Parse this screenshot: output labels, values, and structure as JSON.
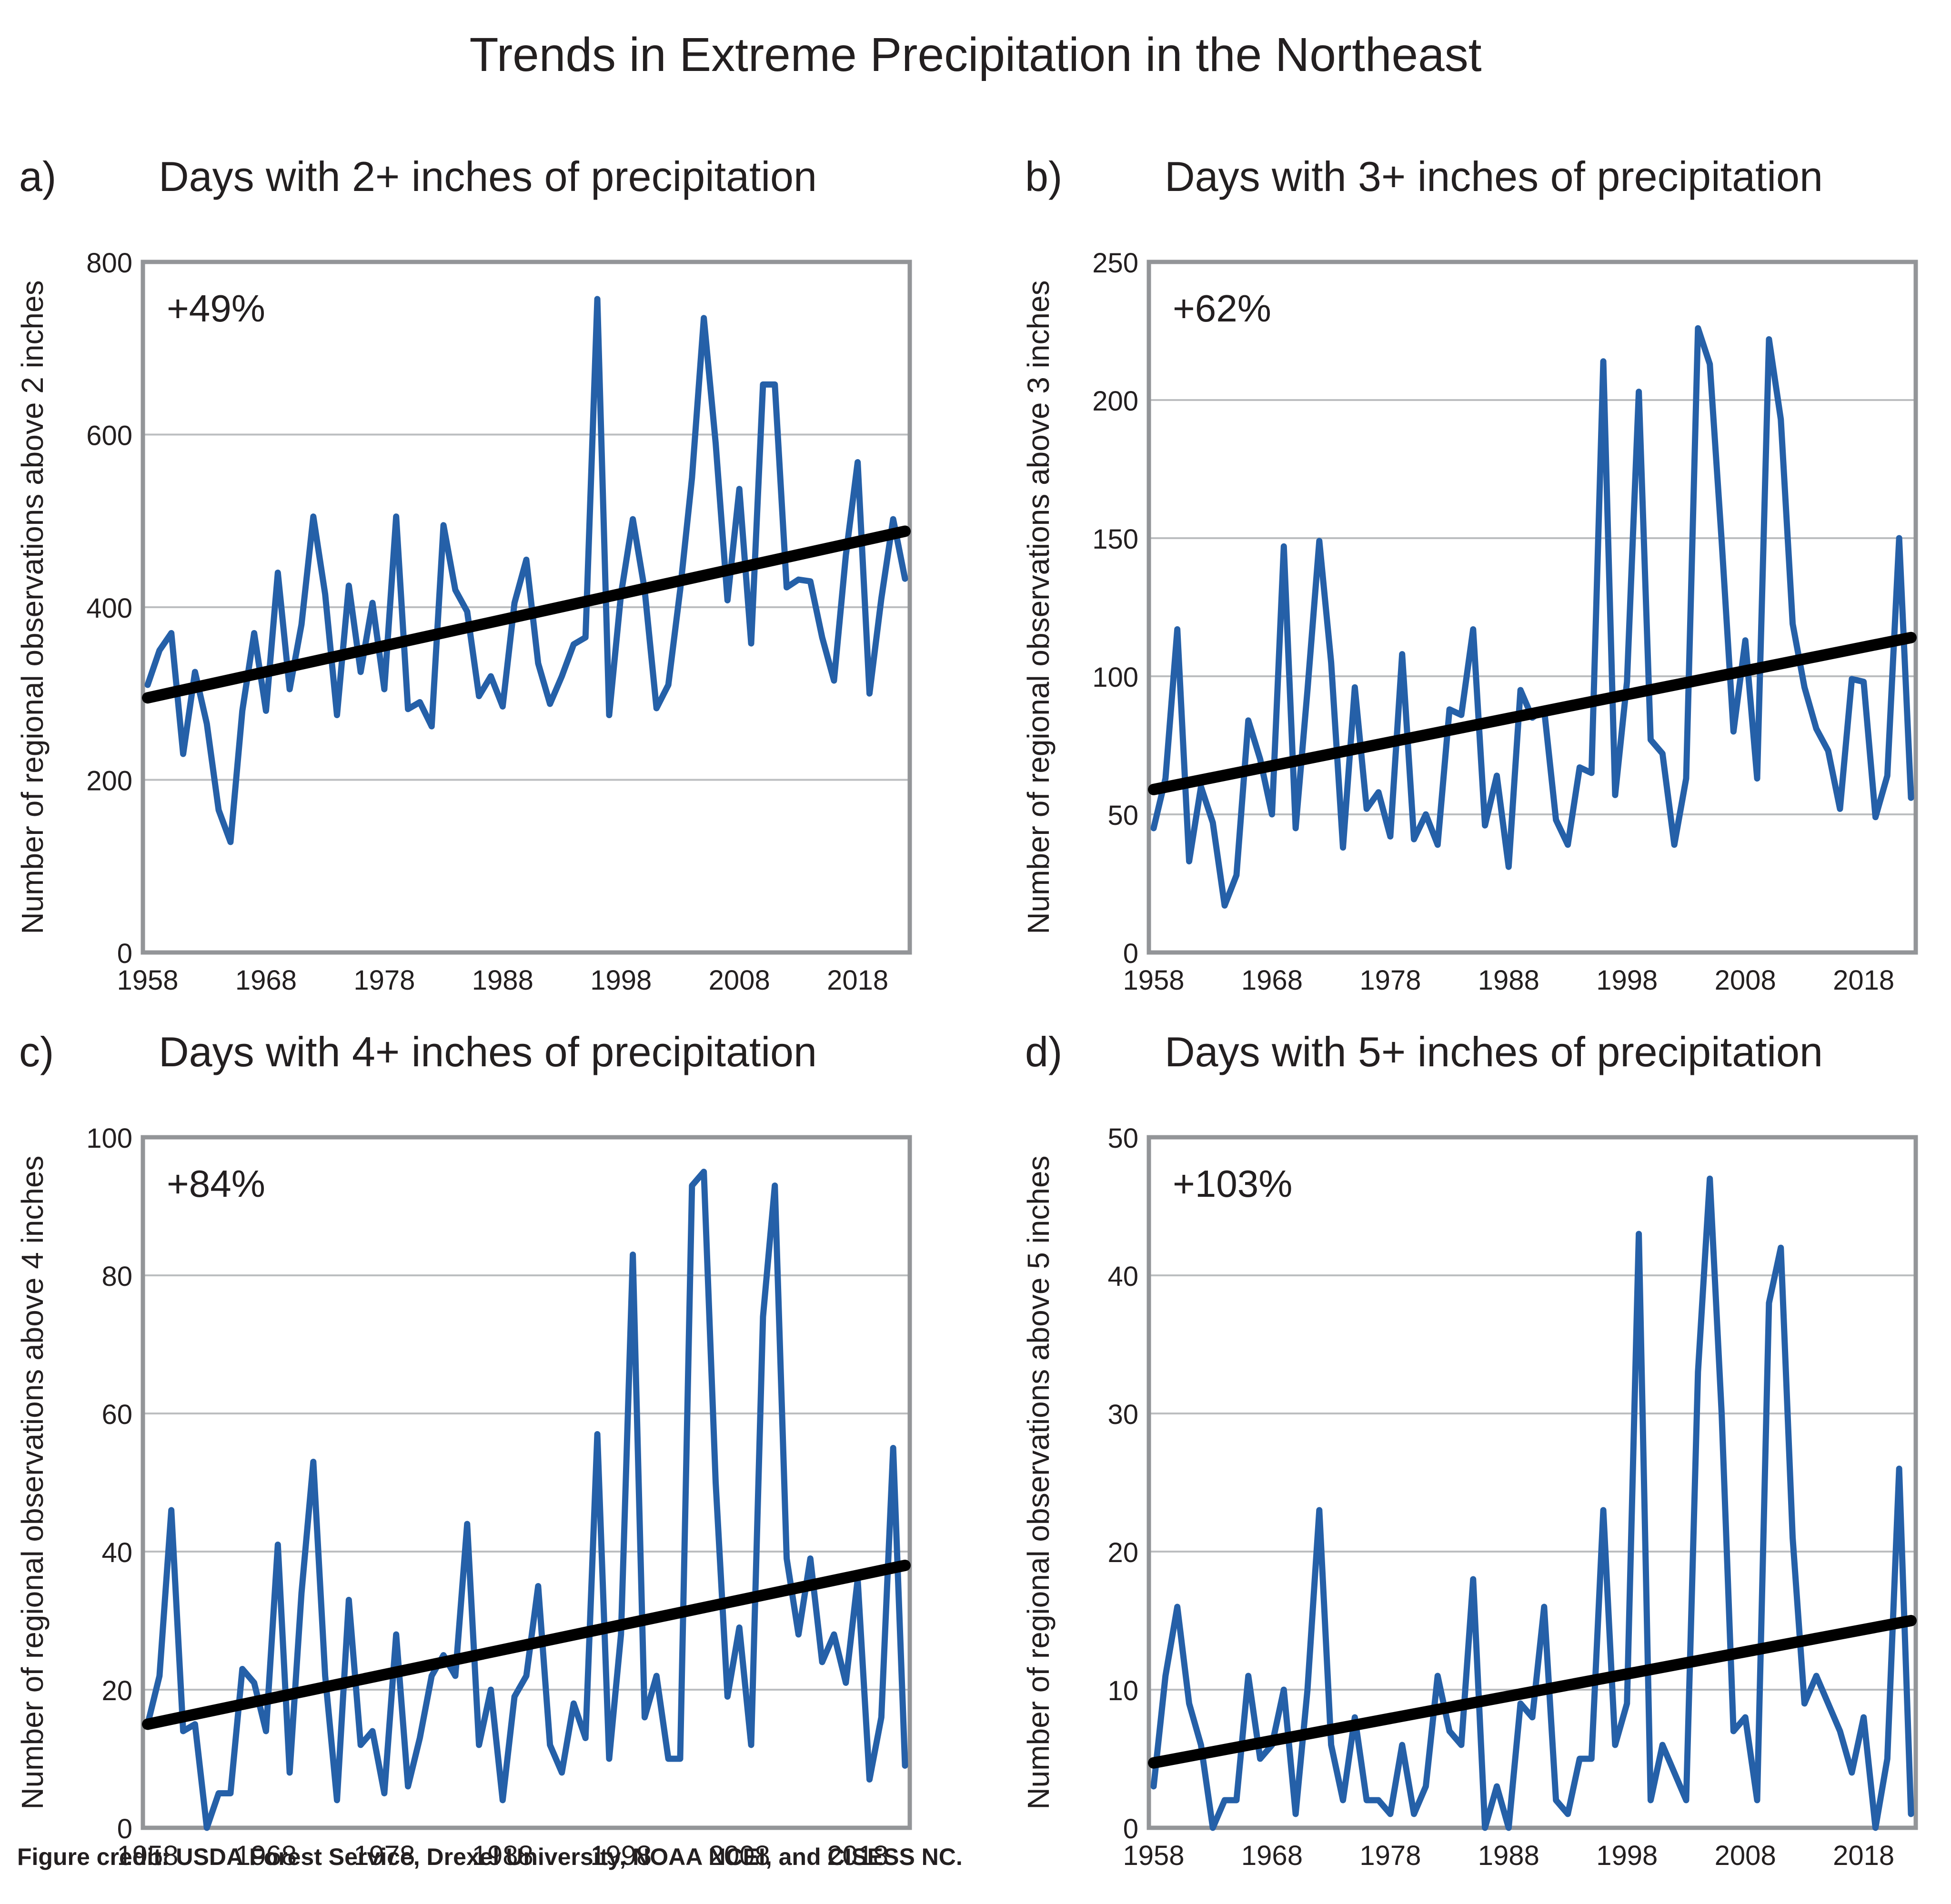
{
  "title": "Trends in Extreme Precipitation in the Northeast",
  "credit": "Figure credit: USDA Forest Service, Drexel University, NOAA NCEI, and CISESS NC.",
  "colors": {
    "series": "#2560a8",
    "trend": "#000000",
    "grid": "#bcbec0",
    "frame": "#939598",
    "text": "#231f20"
  },
  "chart_data": [
    {
      "type": "line",
      "panel": "a)",
      "title": "Days with 2+ inches of precipitation",
      "xlabel": "",
      "ylabel": "Number of regional observations above 2 inches",
      "annotation": "+49%",
      "xlim": [
        1958,
        2022
      ],
      "ylim": [
        0,
        800
      ],
      "yticks": [
        0,
        200,
        400,
        600,
        800
      ],
      "xticks": [
        1958,
        1968,
        1978,
        1988,
        1998,
        2008,
        2018
      ],
      "grid": true,
      "x_start": 1958,
      "series": [
        {
          "name": "Observations",
          "values": [
            310,
            350,
            370,
            230,
            325,
            265,
            165,
            128,
            280,
            370,
            280,
            440,
            305,
            380,
            505,
            415,
            275,
            425,
            325,
            405,
            305,
            505,
            282,
            290,
            262,
            495,
            420,
            395,
            297,
            320,
            285,
            405,
            455,
            335,
            288,
            320,
            357,
            365,
            757,
            275,
            415,
            502,
            420,
            283,
            310,
            420,
            550,
            735,
            590,
            408,
            537,
            358,
            658,
            658,
            423,
            432,
            430,
            365,
            315,
            460,
            568,
            300,
            410,
            502,
            433
          ]
        },
        {
          "name": "Trend",
          "type": "linear",
          "start": [
            1958,
            295
          ],
          "end": [
            2022,
            488
          ]
        }
      ]
    },
    {
      "type": "line",
      "panel": "b)",
      "title": "Days with 3+ inches of precipitation",
      "xlabel": "",
      "ylabel": "Number of regional observations above 3 inches",
      "annotation": "+62%",
      "xlim": [
        1958,
        2022
      ],
      "ylim": [
        0,
        250
      ],
      "yticks": [
        0,
        50,
        100,
        150,
        200,
        250
      ],
      "xticks": [
        1958,
        1968,
        1978,
        1988,
        1998,
        2008,
        2018
      ],
      "grid": true,
      "x_start": 1958,
      "series": [
        {
          "name": "Observations",
          "values": [
            45,
            63,
            117,
            33,
            60,
            47,
            17,
            28,
            84,
            70,
            50,
            147,
            45,
            95,
            149,
            105,
            38,
            96,
            52,
            58,
            42,
            108,
            41,
            50,
            39,
            88,
            86,
            117,
            46,
            64,
            31,
            95,
            85,
            88,
            48,
            39,
            67,
            65,
            214,
            57,
            98,
            203,
            77,
            72,
            39,
            63,
            226,
            213,
            149,
            80,
            113,
            63,
            222,
            193,
            119,
            96,
            81,
            73,
            52,
            99,
            98,
            49,
            64,
            150,
            56
          ]
        },
        {
          "name": "Trend",
          "type": "linear",
          "start": [
            1958,
            59
          ],
          "end": [
            2022,
            114
          ]
        }
      ]
    },
    {
      "type": "line",
      "panel": "c)",
      "title": "Days with 4+ inches of precipitation",
      "xlabel": "",
      "ylabel": "Number of regional observations above 4 inches",
      "annotation": "+84%",
      "xlim": [
        1958,
        2022
      ],
      "ylim": [
        0,
        100
      ],
      "yticks": [
        0,
        20,
        40,
        60,
        80,
        100
      ],
      "xticks": [
        1958,
        1968,
        1978,
        1988,
        1998,
        2008,
        2018
      ],
      "grid": true,
      "x_start": 1958,
      "series": [
        {
          "name": "Observations",
          "values": [
            15,
            22,
            46,
            14,
            15,
            0,
            5,
            5,
            23,
            21,
            14,
            41,
            8,
            34,
            53,
            22,
            4,
            33,
            12,
            14,
            5,
            28,
            6,
            13,
            22,
            25,
            22,
            44,
            12,
            20,
            4,
            19,
            22,
            35,
            12,
            8,
            18,
            13,
            57,
            10,
            28,
            83,
            16,
            22,
            10,
            10,
            93,
            95,
            50,
            19,
            29,
            12,
            74,
            93,
            39,
            28,
            39,
            24,
            28,
            21,
            36,
            7,
            16,
            55,
            9
          ]
        },
        {
          "name": "Trend",
          "type": "linear",
          "start": [
            1958,
            15
          ],
          "end": [
            2022,
            38
          ]
        }
      ]
    },
    {
      "type": "line",
      "panel": "d)",
      "title": "Days with 5+ inches of precipitation",
      "xlabel": "",
      "ylabel": "Number of regional observations above 5 inches",
      "annotation": "+103%",
      "xlim": [
        1958,
        2022
      ],
      "ylim": [
        0,
        50
      ],
      "yticks": [
        0,
        10,
        20,
        30,
        40,
        50
      ],
      "xticks": [
        1958,
        1968,
        1978,
        1988,
        1998,
        2008,
        2018
      ],
      "grid": true,
      "x_start": 1958,
      "series": [
        {
          "name": "Observations",
          "values": [
            3,
            11,
            16,
            9,
            6,
            0,
            2,
            2,
            11,
            5,
            6,
            10,
            1,
            10,
            23,
            6,
            2,
            8,
            2,
            2,
            1,
            6,
            1,
            3,
            11,
            7,
            6,
            18,
            0,
            3,
            0,
            9,
            8,
            16,
            2,
            1,
            5,
            5,
            23,
            6,
            9,
            43,
            2,
            6,
            4,
            2,
            33,
            47,
            30,
            7,
            8,
            2,
            38,
            42,
            21,
            9,
            11,
            9,
            7,
            4,
            8,
            0,
            5,
            26,
            1
          ]
        },
        {
          "name": "Trend",
          "type": "linear",
          "start": [
            1958,
            4.7
          ],
          "end": [
            2022,
            15
          ]
        }
      ]
    }
  ]
}
